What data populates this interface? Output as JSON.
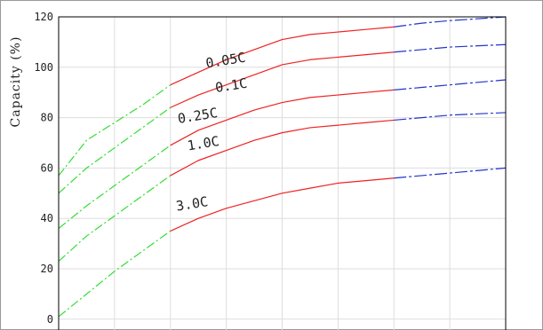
{
  "chart_data": {
    "type": "line",
    "title": "",
    "xlabel": "",
    "ylabel": "Capacity (%)",
    "xlim": [
      0,
      8
    ],
    "ylim": [
      0,
      120
    ],
    "yticks": [
      0,
      20,
      40,
      60,
      80,
      100,
      120
    ],
    "grid": true,
    "legend": "none",
    "colors": {
      "segment_start": "#33dd33",
      "segment_mid": "#ee2222",
      "segment_end": "#2233cc",
      "grid": "#dddddd",
      "frame": "#000000",
      "outer_border": "#999999"
    },
    "series": [
      {
        "name": "0.05C",
        "label_at": [
          3.0,
          101
        ],
        "label_rotate": -9,
        "points": [
          [
            0,
            57
          ],
          [
            0.5,
            71
          ],
          [
            1,
            78
          ],
          [
            1.5,
            85
          ],
          [
            2,
            93
          ],
          [
            2.5,
            98
          ],
          [
            3,
            103
          ],
          [
            3.5,
            107
          ],
          [
            4,
            111
          ],
          [
            4.5,
            113
          ],
          [
            5,
            114
          ],
          [
            5.5,
            115
          ],
          [
            6,
            116
          ],
          [
            6.5,
            117.5
          ],
          [
            7,
            118.5
          ],
          [
            8,
            120
          ]
        ],
        "mid_range": [
          2,
          6
        ]
      },
      {
        "name": "0.1C",
        "label_at": [
          3.1,
          91
        ],
        "label_rotate": -9,
        "points": [
          [
            0,
            50
          ],
          [
            0.5,
            60
          ],
          [
            1,
            68
          ],
          [
            1.5,
            76
          ],
          [
            2,
            84
          ],
          [
            2.5,
            89
          ],
          [
            3,
            93
          ],
          [
            3.5,
            97
          ],
          [
            4,
            101
          ],
          [
            4.5,
            103
          ],
          [
            5,
            104
          ],
          [
            5.5,
            105
          ],
          [
            6,
            106
          ],
          [
            6.5,
            107
          ],
          [
            7,
            108
          ],
          [
            8,
            109
          ]
        ],
        "mid_range": [
          2,
          6
        ]
      },
      {
        "name": "0.25C",
        "label_at": [
          2.5,
          79
        ],
        "label_rotate": -9,
        "points": [
          [
            0,
            36
          ],
          [
            0.5,
            45
          ],
          [
            1,
            53
          ],
          [
            1.5,
            61
          ],
          [
            2,
            69
          ],
          [
            2.5,
            75
          ],
          [
            3,
            79
          ],
          [
            3.5,
            83
          ],
          [
            4,
            86
          ],
          [
            4.5,
            88
          ],
          [
            5,
            89
          ],
          [
            5.5,
            90
          ],
          [
            6,
            91
          ],
          [
            6.5,
            92
          ],
          [
            7,
            93
          ],
          [
            8,
            95
          ]
        ],
        "mid_range": [
          2,
          6
        ]
      },
      {
        "name": "1.0C",
        "label_at": [
          2.6,
          68
        ],
        "label_rotate": -9,
        "points": [
          [
            0,
            23
          ],
          [
            0.5,
            33
          ],
          [
            1,
            41
          ],
          [
            1.5,
            49
          ],
          [
            2,
            57
          ],
          [
            2.5,
            63
          ],
          [
            3,
            67
          ],
          [
            3.5,
            71
          ],
          [
            4,
            74
          ],
          [
            4.5,
            76
          ],
          [
            5,
            77
          ],
          [
            5.5,
            78
          ],
          [
            6,
            79
          ],
          [
            6.5,
            80
          ],
          [
            7,
            81
          ],
          [
            8,
            82
          ]
        ],
        "mid_range": [
          2,
          6
        ]
      },
      {
        "name": "3.0C",
        "label_at": [
          2.4,
          44
        ],
        "label_rotate": -9,
        "points": [
          [
            0,
            1
          ],
          [
            0.5,
            10
          ],
          [
            1,
            19
          ],
          [
            1.5,
            27
          ],
          [
            2,
            35
          ],
          [
            2.5,
            40
          ],
          [
            3,
            44
          ],
          [
            3.5,
            47
          ],
          [
            4,
            50
          ],
          [
            4.5,
            52
          ],
          [
            5,
            54
          ],
          [
            5.5,
            55
          ],
          [
            6,
            56
          ],
          [
            6.5,
            57
          ],
          [
            7,
            58
          ],
          [
            8,
            60
          ]
        ],
        "mid_range": [
          2,
          6
        ]
      }
    ]
  }
}
